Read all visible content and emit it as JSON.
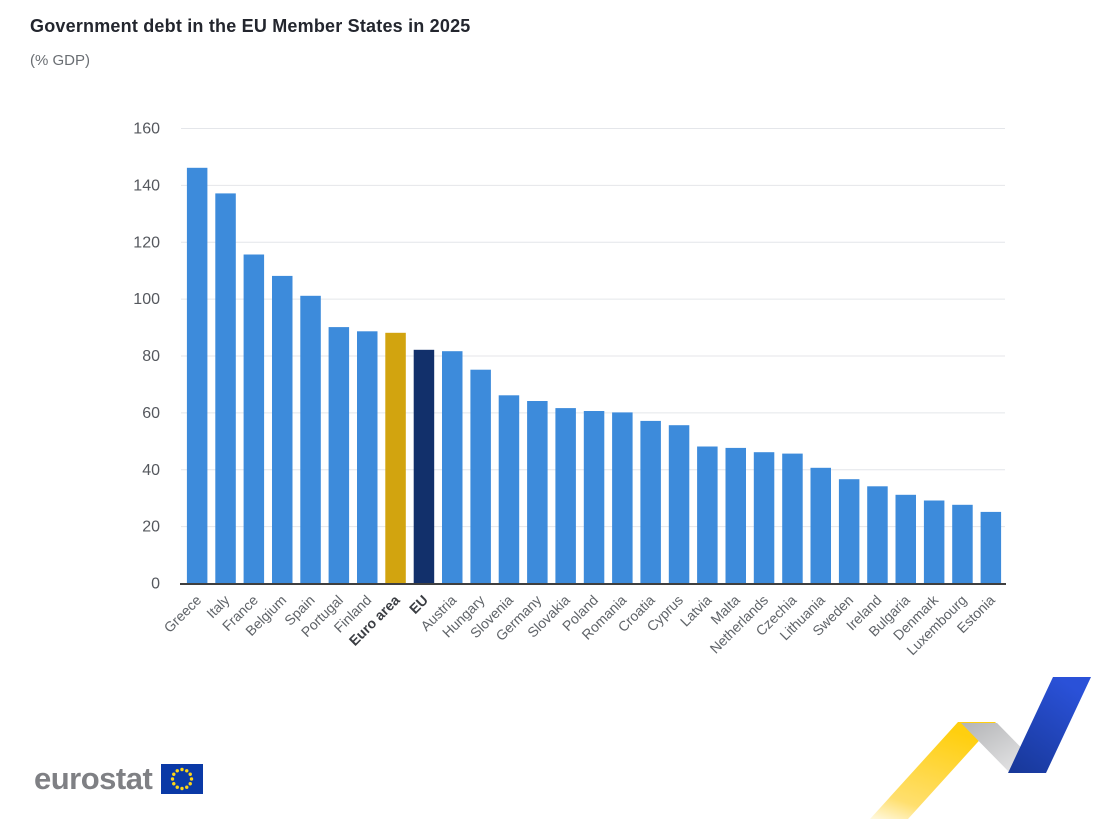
{
  "header": {
    "title": "Government debt in the EU Member States in 2025",
    "subtitle": "(% GDP)"
  },
  "chart_data": {
    "type": "bar",
    "title": "Government debt in the EU Member States in 2025",
    "subtitle": "(% GDP)",
    "categories": [
      "Greece",
      "Italy",
      "France",
      "Belgium",
      "Spain",
      "Portugal",
      "Finland",
      "Euro area",
      "EU",
      "Austria",
      "Hungary",
      "Slovenia",
      "Germany",
      "Slovakia",
      "Poland",
      "Romania",
      "Croatia",
      "Cyprus",
      "Latvia",
      "Malta",
      "Netherlands",
      "Czechia",
      "Lithuania",
      "Sweden",
      "Ireland",
      "Bulgaria",
      "Denmark",
      "Luxembourg",
      "Estonia"
    ],
    "values": [
      146,
      137,
      115.5,
      108,
      101,
      90,
      88.5,
      88,
      82,
      81.5,
      75,
      66,
      64,
      61.5,
      60.5,
      60,
      57,
      55.5,
      48,
      47.5,
      46,
      45.5,
      40.5,
      36.5,
      34,
      31,
      29,
      27.5,
      25
    ],
    "xlabel": "",
    "ylabel": "",
    "ylim": [
      0,
      160
    ],
    "yticks": [
      0,
      20,
      40,
      60,
      80,
      100,
      120,
      140,
      160
    ],
    "grid": true,
    "legend": false,
    "bold_labels": [
      "Euro area",
      "EU"
    ],
    "colors": {
      "default_bar": "#3d8bdb",
      "euro_area_bar": "#d2a40f",
      "eu_bar": "#12306b",
      "gridline": "#e4e6ea",
      "axis_line": "#3f3f3f"
    },
    "bar_colors": {
      "Euro area": "#d2a40f",
      "EU": "#12306b"
    }
  },
  "footer": {
    "logo_text": "eurostat"
  }
}
